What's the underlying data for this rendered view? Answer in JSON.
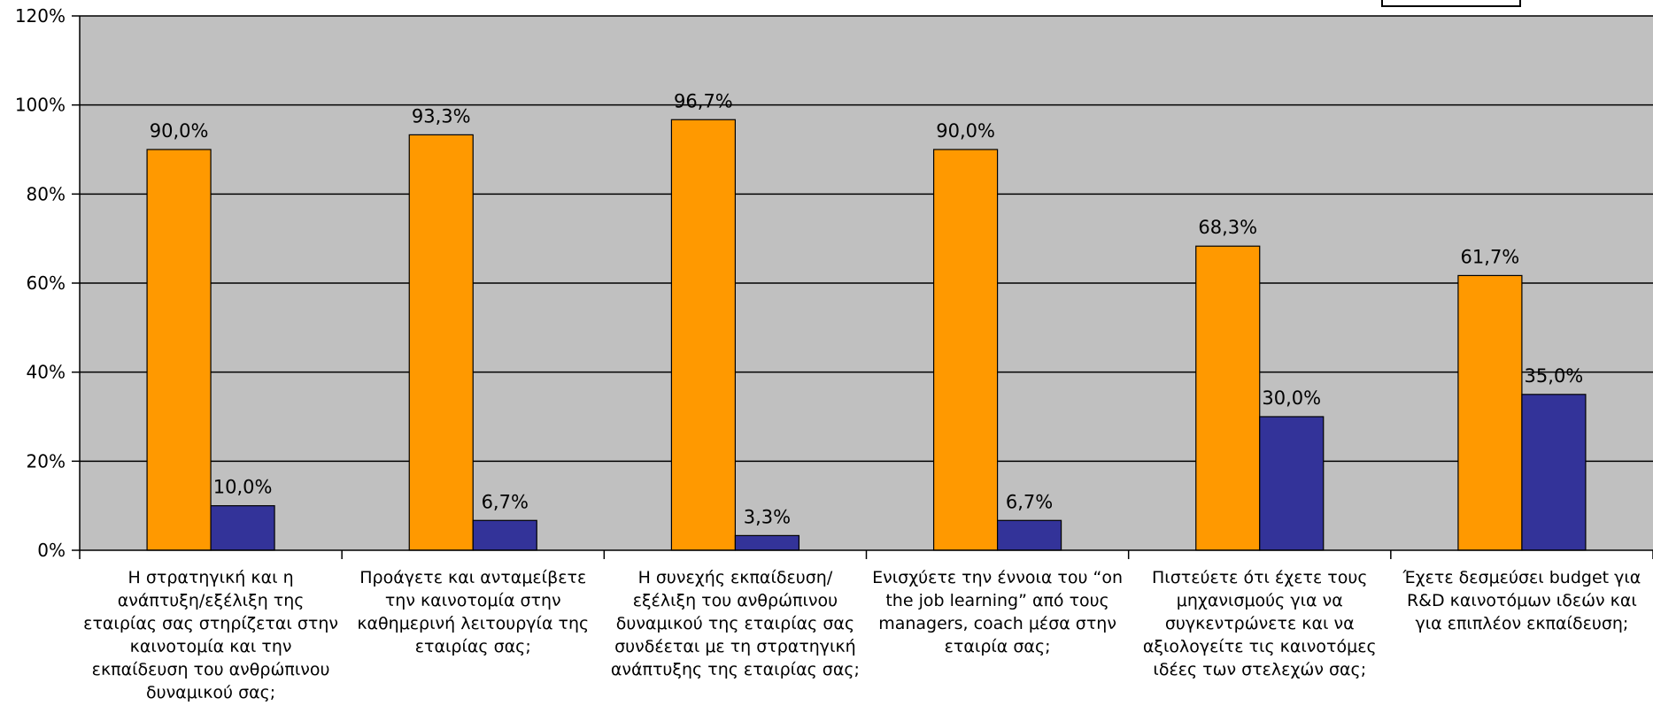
{
  "chart_data": {
    "type": "bar",
    "title": "",
    "xlabel": "",
    "ylabel": "",
    "ylim": [
      0,
      120
    ],
    "yticks": [
      0,
      20,
      40,
      60,
      80,
      100,
      120
    ],
    "ytick_labels": [
      "0%",
      "20%",
      "40%",
      "60%",
      "80%",
      "100%",
      "120%"
    ],
    "grid": true,
    "legend": "top-right",
    "categories": [
      "Η στρατηγική και η ανάπτυξη/εξέλιξη της εταιρίας σας στηρίζεται στην καινοτομία και την εκπαίδευση του ανθρώπινου δυναμικού σας;",
      "Προάγετε και ανταμείβετε την καινοτομία στην καθημερινή λειτουργία της εταιρίας σας;",
      "Η συνεχής εκπαίδευση/εξέλιξη του ανθρώπινου δυναμικού της εταιρίας σας συνδέεται με τη στρατηγική ανάπτυξης της εταιρίας σας;",
      "Ενισχύετε την έννοια του “on the job learning” από τους managers, coach μέσα στην εταιρία σας;",
      "Πιστεύετε ότι έχετε τους μηχανισμούς για να συγκεντρώνετε και να αξιολογείτε τις καινοτόμες ιδέες των στελεχών σας;",
      "Έχετε δεσμεύσει budget για R&D καινοτόμων ιδεών και για επιπλέον εκπαίδευση;"
    ],
    "series": [
      {
        "color": "#FF9900",
        "values": [
          90.0,
          93.3,
          96.7,
          90.0,
          68.3,
          61.7
        ],
        "labels": [
          "90,0%",
          "93,3%",
          "96,7%",
          "90,0%",
          "68,3%",
          "61,7%"
        ]
      },
      {
        "color": "#333399",
        "values": [
          10.0,
          6.7,
          3.3,
          6.7,
          30.0,
          35.0
        ],
        "labels": [
          "10,0%",
          "6,7%",
          "3,3%",
          "6,7%",
          "30,0%",
          "35,0%"
        ]
      }
    ],
    "plot_background": "#C0C0C0"
  }
}
